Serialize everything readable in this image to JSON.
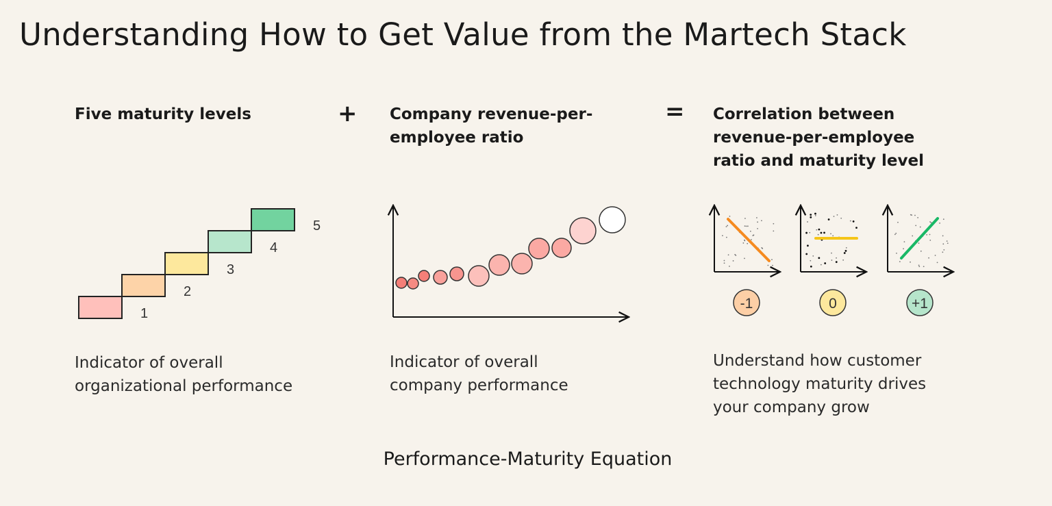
{
  "title": "Understanding How to Get Value from the Martech Stack",
  "columns": [
    {
      "heading": "Five maturity levels",
      "caption": [
        "Indicator of overall",
        "organizational performance"
      ]
    },
    {
      "heading": [
        "Company revenue-per-",
        "employee ratio"
      ],
      "caption": [
        "Indicator of overall",
        "company performance"
      ]
    },
    {
      "heading": [
        "Correlation between",
        "revenue-per-employee",
        "ratio and maturity level"
      ],
      "caption": [
        "Understand how customer",
        "technology maturity drives",
        "your company grow"
      ]
    }
  ],
  "operators": {
    "plus": "+",
    "equals": "="
  },
  "maturity_levels": [
    {
      "label": "1",
      "color": "#ffc0bb"
    },
    {
      "label": "2",
      "color": "#fdd3a8"
    },
    {
      "label": "3",
      "color": "#fde89d"
    },
    {
      "label": "4",
      "color": "#b7e6cc"
    },
    {
      "label": "5",
      "color": "#72d39f"
    }
  ],
  "correlations": [
    {
      "label": "-1",
      "color": "#fdcfa6",
      "line_color": "#f58a1f"
    },
    {
      "label": "0",
      "color": "#fde89d",
      "line_color": "#f5c518"
    },
    {
      "label": "+1",
      "color": "#b6e5cb",
      "line_color": "#19b866"
    }
  ],
  "footer": "Performance-Maturity Equation"
}
